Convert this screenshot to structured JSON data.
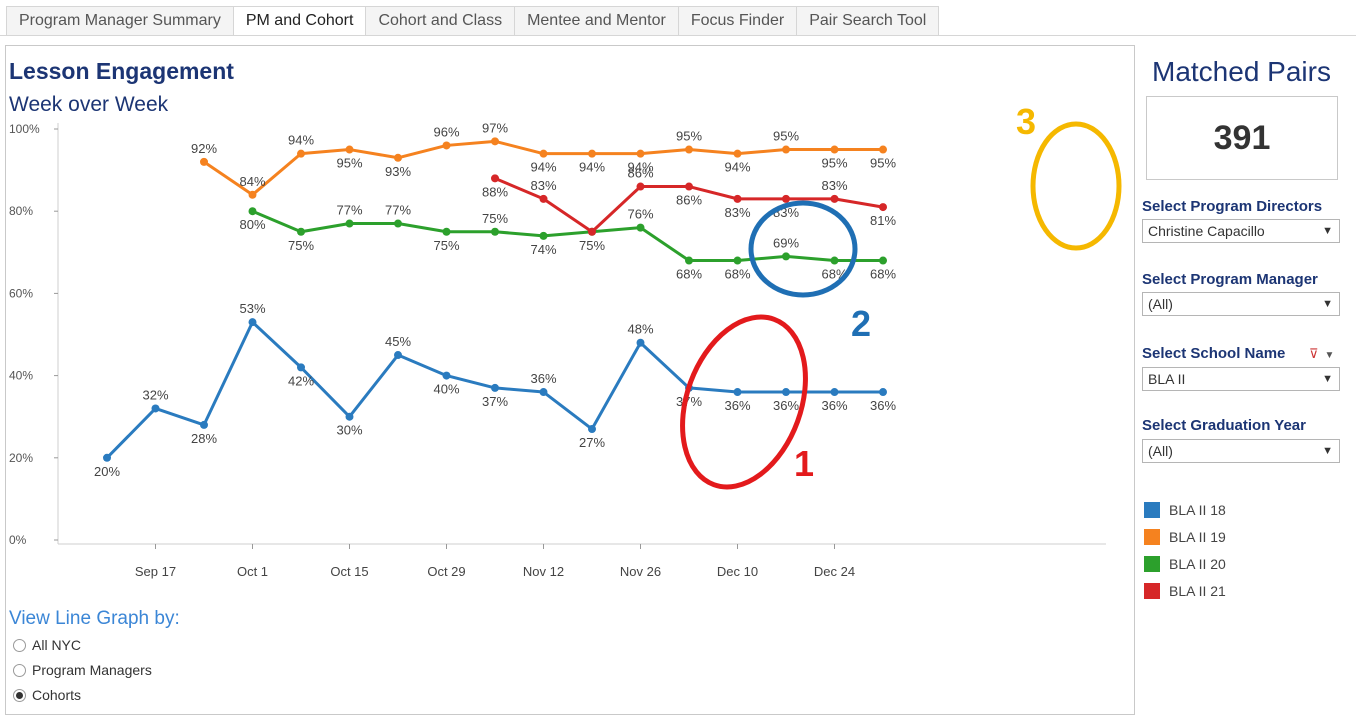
{
  "tabs": [
    "Program Manager Summary",
    "PM and Cohort",
    "Cohort and Class",
    "Mentee and Mentor",
    "Focus Finder",
    "Pair Search Tool"
  ],
  "active_tab": "PM and Cohort",
  "chart_title": "Lesson Engagement",
  "chart_subtitle": "Week over Week",
  "view_by": {
    "title": "View Line Graph by:",
    "options": [
      "All NYC",
      "Program Managers",
      "Cohorts"
    ],
    "selected": "Cohorts"
  },
  "sidebar": {
    "matched_pairs_title": "Matched Pairs",
    "matched_pairs_value": "391",
    "filters": [
      {
        "label": "Select Program Directors",
        "value": "Christine Capacillo"
      },
      {
        "label": "Select Program Manager",
        "value": "(All)"
      },
      {
        "label": "Select School Name",
        "value": "BLA II"
      },
      {
        "label": "Select Graduation Year",
        "value": "(All)"
      }
    ]
  },
  "annotations": [
    {
      "label": "1",
      "color": "#e31a1c"
    },
    {
      "label": "2",
      "color": "#1f6fb4"
    },
    {
      "label": "3",
      "color": "#f5b800"
    }
  ],
  "chart_data": {
    "type": "line",
    "title": "Lesson Engagement",
    "subtitle": "Week over Week",
    "x_tick_labels": [
      "Sep 17",
      "Oct 1",
      "Oct 15",
      "Oct 29",
      "Nov 12",
      "Nov 26",
      "Dec 10",
      "Dec 24"
    ],
    "y_tick_labels": [
      "0%",
      "20%",
      "40%",
      "60%",
      "80%",
      "100%"
    ],
    "ylim": [
      0,
      100
    ],
    "x": [
      "Sep 10",
      "Sep 17",
      "Sep 24",
      "Oct 1",
      "Oct 8",
      "Oct 15",
      "Oct 22",
      "Oct 29",
      "Nov 5",
      "Nov 12",
      "Nov 19",
      "Nov 26",
      "Dec 3",
      "Dec 10",
      "Dec 17",
      "Dec 24",
      "Dec 31"
    ],
    "legend_position": "right",
    "series": [
      {
        "name": "BLA II 18",
        "color": "#2a7bbf",
        "values": [
          20,
          32,
          28,
          53,
          42,
          30,
          45,
          40,
          37,
          36,
          27,
          48,
          37,
          36,
          36,
          36,
          36
        ],
        "labels": [
          "20%",
          "32%",
          "28%",
          "53%",
          "42%",
          "30%",
          "45%",
          "40%",
          "37%",
          "36%",
          "27%",
          "48%",
          "37%",
          "36%",
          "36%",
          "36%",
          "36%"
        ]
      },
      {
        "name": "BLA II 19",
        "color": "#f5821f",
        "values": [
          null,
          null,
          92,
          84,
          94,
          95,
          93,
          96,
          97,
          94,
          94,
          94,
          95,
          94,
          95,
          95,
          95
        ],
        "labels": [
          null,
          null,
          "92%",
          "84%",
          "94%",
          "95%",
          "93%",
          "96%",
          "97%",
          "94%",
          "94%",
          "94%",
          "95%",
          "94%",
          "95%",
          "95%",
          "95%"
        ]
      },
      {
        "name": "BLA II 20",
        "color": "#2ca02c",
        "values": [
          null,
          null,
          null,
          80,
          75,
          77,
          77,
          75,
          75,
          74,
          75,
          76,
          68,
          68,
          69,
          68,
          68
        ],
        "labels": [
          null,
          null,
          null,
          "80%",
          "75%",
          "77%",
          "77%",
          "75%",
          "75%",
          "74%",
          "75%",
          "76%",
          "68%",
          "68%",
          "69%",
          "68%",
          "68%"
        ]
      },
      {
        "name": "BLA II 21",
        "color": "#d62728",
        "values": [
          null,
          null,
          null,
          null,
          null,
          null,
          null,
          null,
          88,
          83,
          75,
          86,
          86,
          83,
          83,
          83,
          81
        ],
        "labels": [
          null,
          null,
          null,
          null,
          null,
          null,
          null,
          null,
          "88%",
          "83%",
          null,
          "86%",
          "86%",
          "83%",
          "83%",
          "83%",
          "81%"
        ]
      }
    ]
  }
}
